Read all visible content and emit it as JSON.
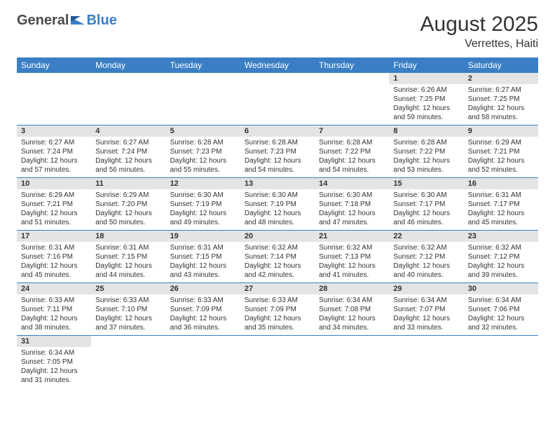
{
  "logo": {
    "text1": "General",
    "text2": "Blue"
  },
  "title": "August 2025",
  "location": "Verrettes, Haiti",
  "colors": {
    "header_bg": "#3a7fc4",
    "daynum_bg": "#e4e4e4"
  },
  "weekdays": [
    "Sunday",
    "Monday",
    "Tuesday",
    "Wednesday",
    "Thursday",
    "Friday",
    "Saturday"
  ],
  "weeks": [
    [
      null,
      null,
      null,
      null,
      null,
      {
        "n": "1",
        "sr": "Sunrise: 6:26 AM",
        "ss": "Sunset: 7:25 PM",
        "dl": "Daylight: 12 hours and 59 minutes."
      },
      {
        "n": "2",
        "sr": "Sunrise: 6:27 AM",
        "ss": "Sunset: 7:25 PM",
        "dl": "Daylight: 12 hours and 58 minutes."
      }
    ],
    [
      {
        "n": "3",
        "sr": "Sunrise: 6:27 AM",
        "ss": "Sunset: 7:24 PM",
        "dl": "Daylight: 12 hours and 57 minutes."
      },
      {
        "n": "4",
        "sr": "Sunrise: 6:27 AM",
        "ss": "Sunset: 7:24 PM",
        "dl": "Daylight: 12 hours and 56 minutes."
      },
      {
        "n": "5",
        "sr": "Sunrise: 6:28 AM",
        "ss": "Sunset: 7:23 PM",
        "dl": "Daylight: 12 hours and 55 minutes."
      },
      {
        "n": "6",
        "sr": "Sunrise: 6:28 AM",
        "ss": "Sunset: 7:23 PM",
        "dl": "Daylight: 12 hours and 54 minutes."
      },
      {
        "n": "7",
        "sr": "Sunrise: 6:28 AM",
        "ss": "Sunset: 7:22 PM",
        "dl": "Daylight: 12 hours and 54 minutes."
      },
      {
        "n": "8",
        "sr": "Sunrise: 6:28 AM",
        "ss": "Sunset: 7:22 PM",
        "dl": "Daylight: 12 hours and 53 minutes."
      },
      {
        "n": "9",
        "sr": "Sunrise: 6:29 AM",
        "ss": "Sunset: 7:21 PM",
        "dl": "Daylight: 12 hours and 52 minutes."
      }
    ],
    [
      {
        "n": "10",
        "sr": "Sunrise: 6:29 AM",
        "ss": "Sunset: 7:21 PM",
        "dl": "Daylight: 12 hours and 51 minutes."
      },
      {
        "n": "11",
        "sr": "Sunrise: 6:29 AM",
        "ss": "Sunset: 7:20 PM",
        "dl": "Daylight: 12 hours and 50 minutes."
      },
      {
        "n": "12",
        "sr": "Sunrise: 6:30 AM",
        "ss": "Sunset: 7:19 PM",
        "dl": "Daylight: 12 hours and 49 minutes."
      },
      {
        "n": "13",
        "sr": "Sunrise: 6:30 AM",
        "ss": "Sunset: 7:19 PM",
        "dl": "Daylight: 12 hours and 48 minutes."
      },
      {
        "n": "14",
        "sr": "Sunrise: 6:30 AM",
        "ss": "Sunset: 7:18 PM",
        "dl": "Daylight: 12 hours and 47 minutes."
      },
      {
        "n": "15",
        "sr": "Sunrise: 6:30 AM",
        "ss": "Sunset: 7:17 PM",
        "dl": "Daylight: 12 hours and 46 minutes."
      },
      {
        "n": "16",
        "sr": "Sunrise: 6:31 AM",
        "ss": "Sunset: 7:17 PM",
        "dl": "Daylight: 12 hours and 45 minutes."
      }
    ],
    [
      {
        "n": "17",
        "sr": "Sunrise: 6:31 AM",
        "ss": "Sunset: 7:16 PM",
        "dl": "Daylight: 12 hours and 45 minutes."
      },
      {
        "n": "18",
        "sr": "Sunrise: 6:31 AM",
        "ss": "Sunset: 7:15 PM",
        "dl": "Daylight: 12 hours and 44 minutes."
      },
      {
        "n": "19",
        "sr": "Sunrise: 6:31 AM",
        "ss": "Sunset: 7:15 PM",
        "dl": "Daylight: 12 hours and 43 minutes."
      },
      {
        "n": "20",
        "sr": "Sunrise: 6:32 AM",
        "ss": "Sunset: 7:14 PM",
        "dl": "Daylight: 12 hours and 42 minutes."
      },
      {
        "n": "21",
        "sr": "Sunrise: 6:32 AM",
        "ss": "Sunset: 7:13 PM",
        "dl": "Daylight: 12 hours and 41 minutes."
      },
      {
        "n": "22",
        "sr": "Sunrise: 6:32 AM",
        "ss": "Sunset: 7:12 PM",
        "dl": "Daylight: 12 hours and 40 minutes."
      },
      {
        "n": "23",
        "sr": "Sunrise: 6:32 AM",
        "ss": "Sunset: 7:12 PM",
        "dl": "Daylight: 12 hours and 39 minutes."
      }
    ],
    [
      {
        "n": "24",
        "sr": "Sunrise: 6:33 AM",
        "ss": "Sunset: 7:11 PM",
        "dl": "Daylight: 12 hours and 38 minutes."
      },
      {
        "n": "25",
        "sr": "Sunrise: 6:33 AM",
        "ss": "Sunset: 7:10 PM",
        "dl": "Daylight: 12 hours and 37 minutes."
      },
      {
        "n": "26",
        "sr": "Sunrise: 6:33 AM",
        "ss": "Sunset: 7:09 PM",
        "dl": "Daylight: 12 hours and 36 minutes."
      },
      {
        "n": "27",
        "sr": "Sunrise: 6:33 AM",
        "ss": "Sunset: 7:09 PM",
        "dl": "Daylight: 12 hours and 35 minutes."
      },
      {
        "n": "28",
        "sr": "Sunrise: 6:34 AM",
        "ss": "Sunset: 7:08 PM",
        "dl": "Daylight: 12 hours and 34 minutes."
      },
      {
        "n": "29",
        "sr": "Sunrise: 6:34 AM",
        "ss": "Sunset: 7:07 PM",
        "dl": "Daylight: 12 hours and 33 minutes."
      },
      {
        "n": "30",
        "sr": "Sunrise: 6:34 AM",
        "ss": "Sunset: 7:06 PM",
        "dl": "Daylight: 12 hours and 32 minutes."
      }
    ],
    [
      {
        "n": "31",
        "sr": "Sunrise: 6:34 AM",
        "ss": "Sunset: 7:05 PM",
        "dl": "Daylight: 12 hours and 31 minutes."
      },
      null,
      null,
      null,
      null,
      null,
      null
    ]
  ]
}
